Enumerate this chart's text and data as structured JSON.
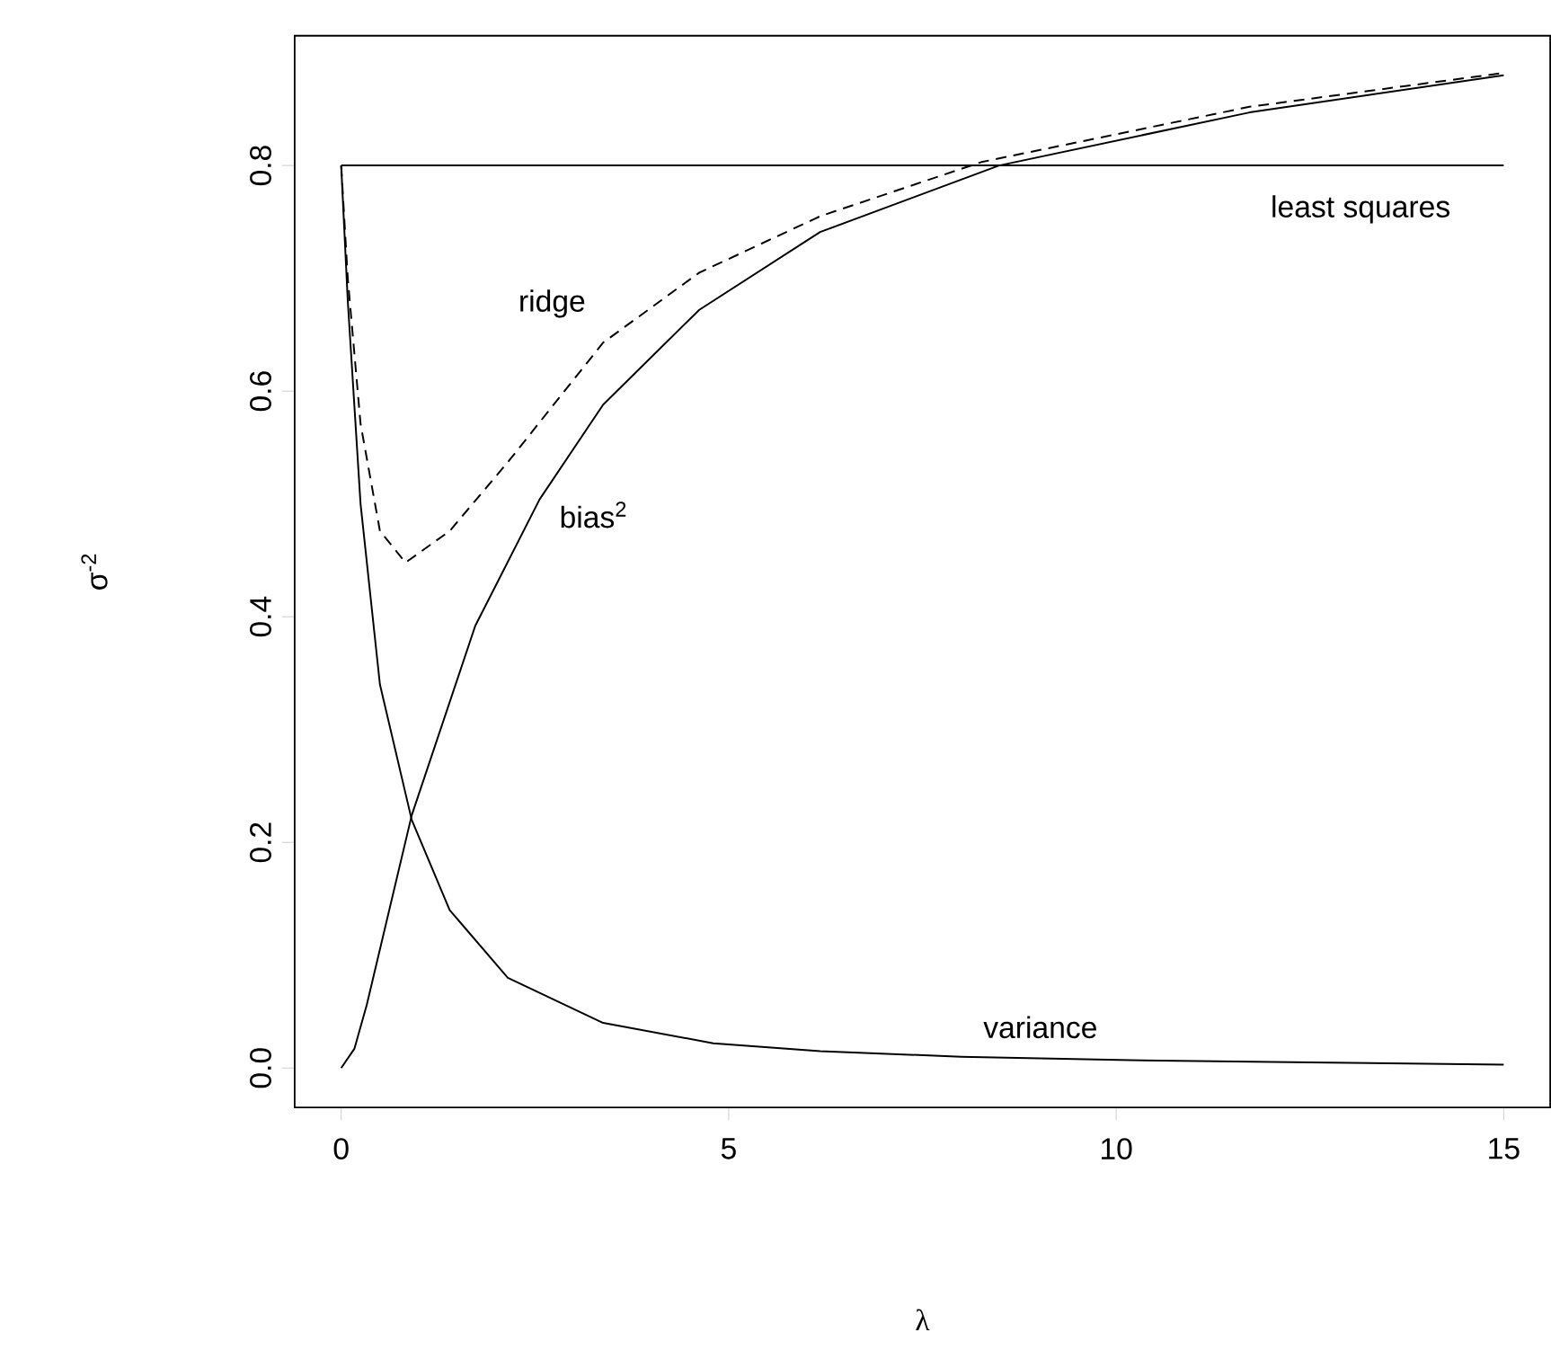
{
  "chart_data": {
    "type": "line",
    "xlabel": "λ",
    "ylabel": "σ$^{-2}$",
    "xlim": [
      -0.6,
      15.6
    ],
    "ylim": [
      -0.035,
      0.915
    ],
    "xticks": [
      0,
      5,
      10,
      15
    ],
    "yticks": [
      {
        "value": 0,
        "label": "0.0"
      },
      {
        "value": 0.2,
        "label": "0.2"
      },
      {
        "value": 0.4,
        "label": "0.4"
      },
      {
        "value": 0.6,
        "label": "0.6"
      },
      {
        "value": 0.8,
        "label": "0.8"
      }
    ],
    "grid": false,
    "marker": "none",
    "series": [
      {
        "name": "least squares",
        "color": "#000000",
        "line_style": "solid",
        "x": [
          0,
          15
        ],
        "values": [
          0.8,
          0.8
        ]
      },
      {
        "name": "variance",
        "color": "#000000",
        "line_style": "solid",
        "x": [
          0,
          0.085,
          0.25,
          0.5,
          0.91,
          1.4,
          2.15,
          3.38,
          4.8,
          6.18,
          8.0,
          10.18,
          12.5,
          15
        ],
        "values": [
          0.8,
          0.68,
          0.5,
          0.34,
          0.22,
          0.14,
          0.08,
          0.04,
          0.022,
          0.015,
          0.01,
          0.007,
          0.005,
          0.003
        ]
      },
      {
        "name": "bias$^{2}$",
        "color": "#000000",
        "line_style": "solid",
        "x": [
          0,
          0.17,
          0.33,
          0.91,
          1.73,
          2.56,
          3.38,
          4.62,
          6.18,
          8.49,
          11.72,
          15
        ],
        "values": [
          0,
          0.017,
          0.056,
          0.224,
          0.392,
          0.504,
          0.588,
          0.672,
          0.741,
          0.8,
          0.847,
          0.88
        ]
      },
      {
        "name": "ridge",
        "color": "#000000",
        "line_style": "dashed",
        "x": [
          0,
          0.085,
          0.25,
          0.5,
          0.83,
          1.4,
          2.15,
          3.38,
          4.62,
          6.18,
          8.26,
          11.72,
          15
        ],
        "values": [
          0.8,
          0.7,
          0.571,
          0.476,
          0.448,
          0.476,
          0.537,
          0.643,
          0.705,
          0.755,
          0.803,
          0.852,
          0.882
        ]
      }
    ]
  }
}
